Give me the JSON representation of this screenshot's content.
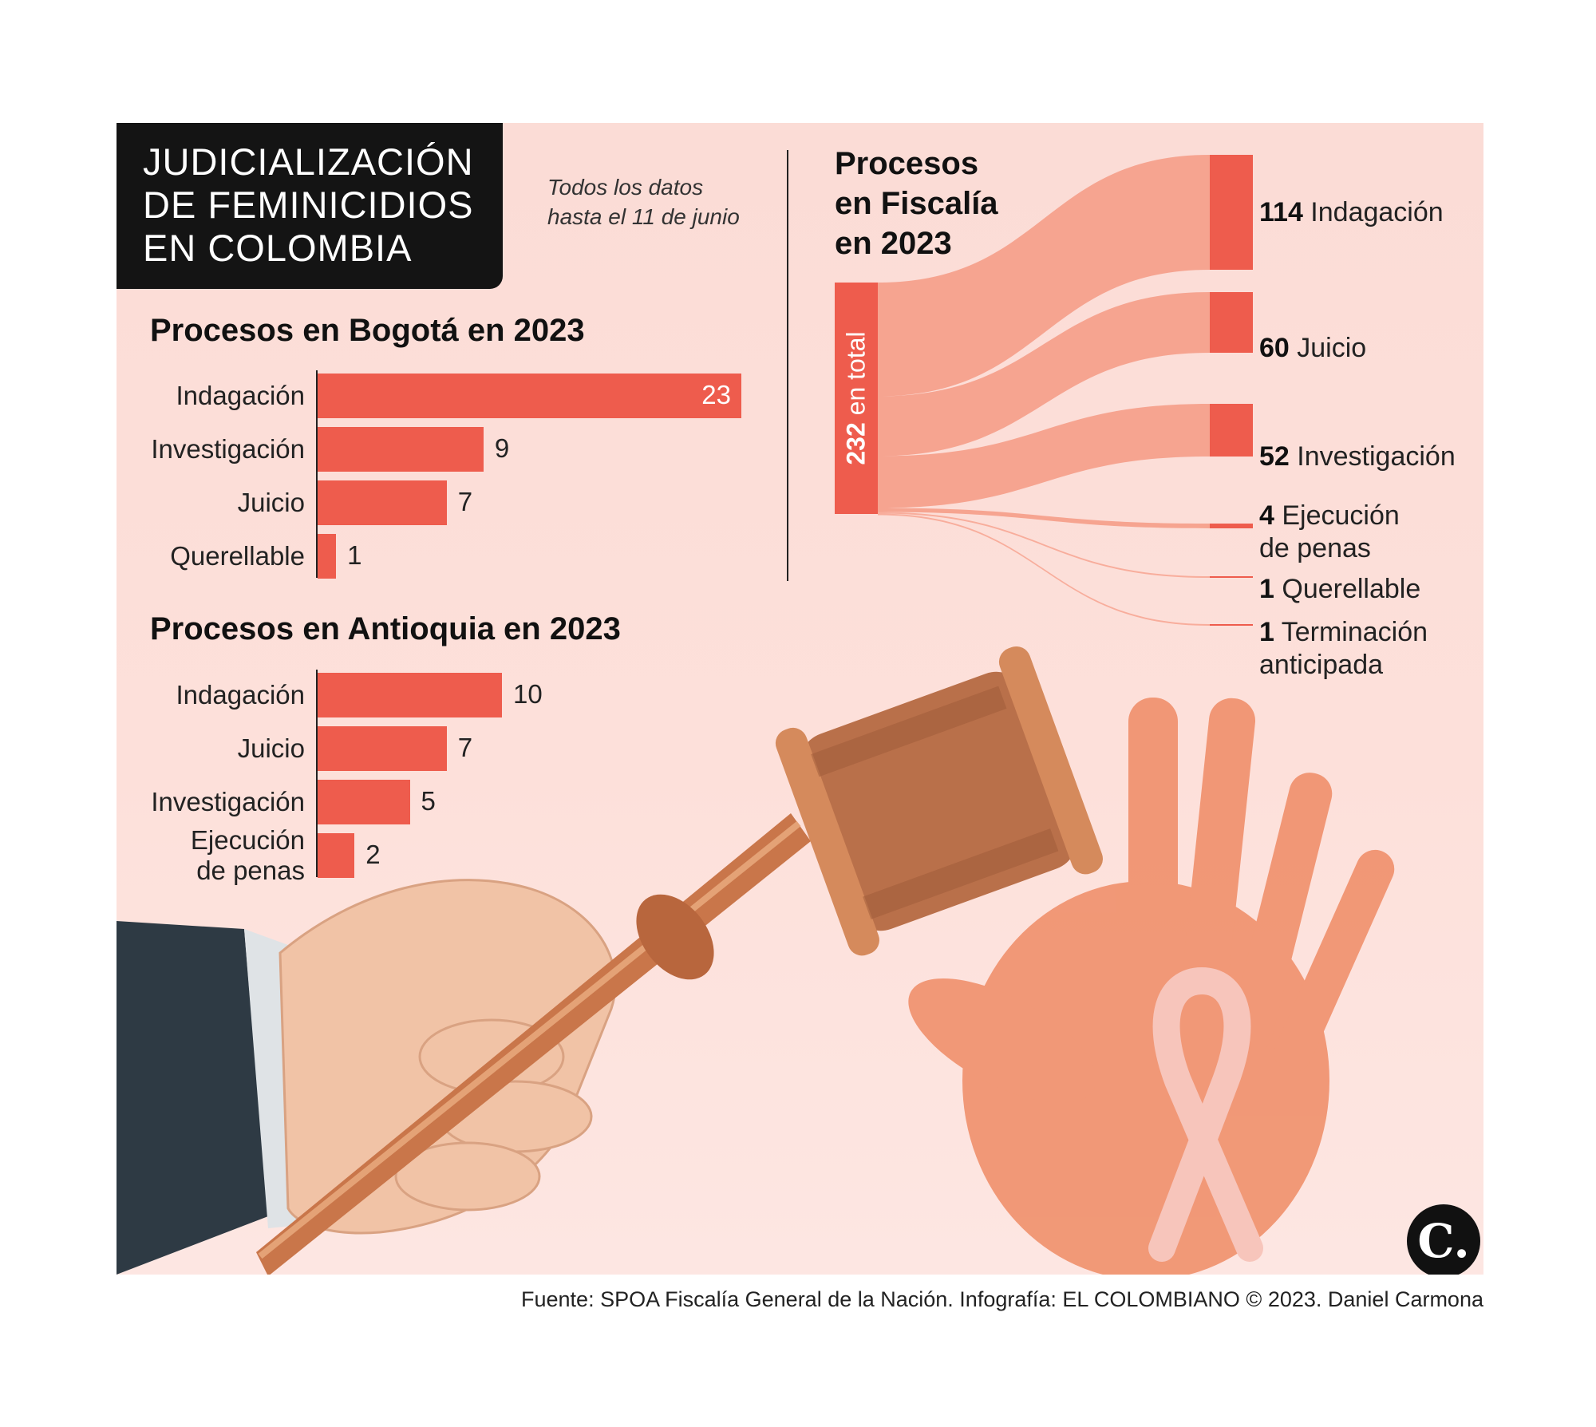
{
  "header": {
    "title": "JUDICIALIZACIÓN\nDE FEMINICIDIOS\nEN COLOMBIA",
    "note": "Todos los datos\nhasta el 11 de junio"
  },
  "colors": {
    "bar": "#ee5c4d",
    "flow": "#f6a08c",
    "title_box": "#141414",
    "background": "#fbdcd6"
  },
  "chart_data": [
    {
      "type": "bar",
      "orientation": "horizontal",
      "title": "Procesos en Bogotá en 2023",
      "categories": [
        "Indagación",
        "Investigación",
        "Juicio",
        "Querellable"
      ],
      "values": [
        23,
        9,
        7,
        1
      ],
      "labels": [
        "23",
        "9",
        "7",
        "1"
      ]
    },
    {
      "type": "bar",
      "orientation": "horizontal",
      "title": "Procesos en Antioquia en 2023",
      "categories": [
        "Indagación",
        "Juicio",
        "Investigación",
        "Ejecución\nde penas"
      ],
      "values": [
        10,
        7,
        5,
        2
      ],
      "labels": [
        "10",
        "7",
        "5",
        "2"
      ]
    },
    {
      "type": "sankey",
      "title": "Procesos\nen Fiscalía\nen 2023",
      "total": 232,
      "total_number": "232",
      "total_text": "en total",
      "flows": [
        {
          "value": 114,
          "number": "114",
          "label": "Indagación"
        },
        {
          "value": 60,
          "number": "60",
          "label": "Juicio"
        },
        {
          "value": 52,
          "number": "52",
          "label": "Investigación"
        },
        {
          "value": 4,
          "number": "4",
          "label": "Ejecución\nde penas"
        },
        {
          "value": 1,
          "number": "1",
          "label": "Querellable"
        },
        {
          "value": 1,
          "number": "1",
          "label": "Terminación\nanticipada"
        }
      ]
    }
  ],
  "footer": {
    "source": "Fuente: SPOA Fiscalía General de la Nación. Infografía: EL COLOMBIANO © 2023. Daniel Carmona",
    "logo_letter": "C."
  }
}
